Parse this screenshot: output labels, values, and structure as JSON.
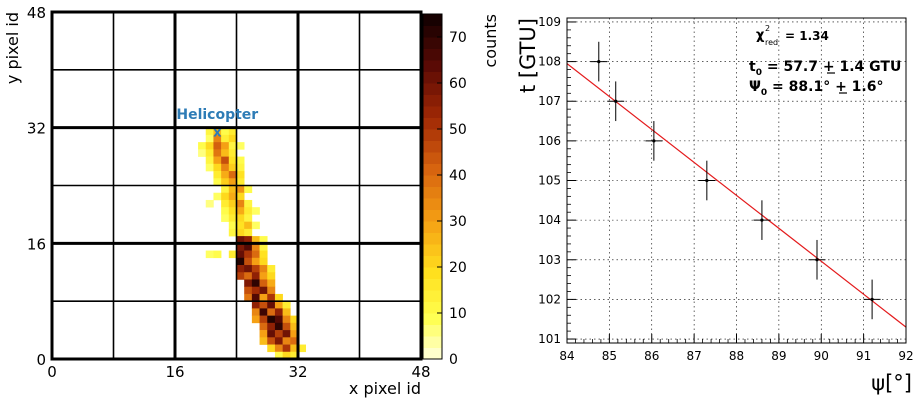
{
  "chart_data": [
    {
      "type": "heatmap",
      "xlabel": "x pixel id",
      "ylabel": "y pixel id",
      "xlim": [
        0,
        48
      ],
      "ylim": [
        0,
        48
      ],
      "x_ticks": [
        0,
        16,
        32,
        48
      ],
      "y_ticks": [
        0,
        16,
        32,
        48
      ],
      "grid": "thick lines every 8 pixels",
      "colorbar": {
        "label": "counts",
        "range": [
          0,
          75
        ],
        "ticks": [
          0,
          10,
          20,
          30,
          40,
          50,
          60,
          70
        ]
      },
      "annotation": {
        "text": "Helicopter",
        "marker": "x",
        "x": 21.5,
        "y": 31.5,
        "color": "#2e7cb6"
      },
      "cells": [
        [
          20,
          31,
          12
        ],
        [
          21,
          31,
          25
        ],
        [
          22,
          31,
          10
        ],
        [
          23,
          31,
          15
        ],
        [
          20,
          30,
          8
        ],
        [
          21,
          30,
          35
        ],
        [
          22,
          30,
          14
        ],
        [
          23,
          30,
          20
        ],
        [
          19,
          29,
          10
        ],
        [
          20,
          29,
          20
        ],
        [
          21,
          29,
          42
        ],
        [
          22,
          29,
          30
        ],
        [
          23,
          29,
          12
        ],
        [
          24,
          29,
          8
        ],
        [
          19,
          28,
          6
        ],
        [
          20,
          28,
          15
        ],
        [
          21,
          28,
          38
        ],
        [
          22,
          28,
          25
        ],
        [
          23,
          28,
          15
        ],
        [
          20,
          27,
          12
        ],
        [
          21,
          27,
          30
        ],
        [
          22,
          27,
          45
        ],
        [
          23,
          27,
          18
        ],
        [
          24,
          27,
          10
        ],
        [
          20,
          26,
          8
        ],
        [
          21,
          26,
          20
        ],
        [
          22,
          26,
          35
        ],
        [
          23,
          26,
          22
        ],
        [
          24,
          26,
          12
        ],
        [
          21,
          25,
          15
        ],
        [
          22,
          25,
          28
        ],
        [
          23,
          25,
          40
        ],
        [
          24,
          25,
          18
        ],
        [
          21,
          24,
          10
        ],
        [
          22,
          24,
          22
        ],
        [
          23,
          24,
          30
        ],
        [
          24,
          24,
          15
        ],
        [
          22,
          23,
          12
        ],
        [
          23,
          23,
          25
        ],
        [
          24,
          23,
          32
        ],
        [
          25,
          23,
          10
        ],
        [
          21,
          22,
          8
        ],
        [
          22,
          22,
          20
        ],
        [
          23,
          22,
          28
        ],
        [
          24,
          22,
          20
        ],
        [
          20,
          21,
          6
        ],
        [
          22,
          21,
          15
        ],
        [
          23,
          21,
          22
        ],
        [
          24,
          21,
          35
        ],
        [
          25,
          21,
          12
        ],
        [
          22,
          20,
          10
        ],
        [
          23,
          20,
          18
        ],
        [
          24,
          20,
          28
        ],
        [
          25,
          20,
          15
        ],
        [
          26,
          20,
          8
        ],
        [
          22,
          19,
          8
        ],
        [
          23,
          19,
          15
        ],
        [
          24,
          19,
          20
        ],
        [
          25,
          19,
          12
        ],
        [
          23,
          18,
          10
        ],
        [
          24,
          18,
          18
        ],
        [
          25,
          18,
          25
        ],
        [
          26,
          18,
          8
        ],
        [
          23,
          17,
          12
        ],
        [
          24,
          17,
          20
        ],
        [
          25,
          17,
          15
        ],
        [
          24,
          16,
          60
        ],
        [
          25,
          16,
          55
        ],
        [
          26,
          16,
          25
        ],
        [
          27,
          16,
          10
        ],
        [
          24,
          15,
          58
        ],
        [
          25,
          15,
          65
        ],
        [
          26,
          15,
          35
        ],
        [
          27,
          15,
          12
        ],
        [
          20,
          14,
          8
        ],
        [
          21,
          14,
          10
        ],
        [
          23,
          14,
          15
        ],
        [
          24,
          14,
          62
        ],
        [
          25,
          14,
          50
        ],
        [
          26,
          14,
          40
        ],
        [
          27,
          14,
          18
        ],
        [
          24,
          13,
          72
        ],
        [
          25,
          13,
          45
        ],
        [
          26,
          13,
          30
        ],
        [
          27,
          13,
          20
        ],
        [
          24,
          12,
          55
        ],
        [
          25,
          12,
          60
        ],
        [
          26,
          12,
          48
        ],
        [
          27,
          12,
          35
        ],
        [
          28,
          12,
          15
        ],
        [
          24,
          11,
          48
        ],
        [
          25,
          11,
          40
        ],
        [
          26,
          11,
          55
        ],
        [
          27,
          11,
          30
        ],
        [
          28,
          11,
          20
        ],
        [
          25,
          10,
          58
        ],
        [
          26,
          10,
          70
        ],
        [
          27,
          10,
          42
        ],
        [
          28,
          10,
          28
        ],
        [
          25,
          9,
          45
        ],
        [
          26,
          9,
          52
        ],
        [
          27,
          9,
          60
        ],
        [
          28,
          9,
          35
        ],
        [
          25,
          8,
          38
        ],
        [
          26,
          8,
          65
        ],
        [
          27,
          8,
          30
        ],
        [
          28,
          8,
          50
        ],
        [
          29,
          8,
          20
        ],
        [
          26,
          7,
          55
        ],
        [
          27,
          7,
          45
        ],
        [
          28,
          7,
          62
        ],
        [
          29,
          7,
          30
        ],
        [
          30,
          7,
          15
        ],
        [
          26,
          6,
          35
        ],
        [
          27,
          6,
          68
        ],
        [
          28,
          6,
          40
        ],
        [
          29,
          6,
          55
        ],
        [
          30,
          6,
          25
        ],
        [
          26,
          5,
          30
        ],
        [
          27,
          5,
          48
        ],
        [
          28,
          5,
          72
        ],
        [
          29,
          5,
          65
        ],
        [
          30,
          5,
          35
        ],
        [
          31,
          5,
          20
        ],
        [
          27,
          4,
          40
        ],
        [
          28,
          4,
          55
        ],
        [
          29,
          4,
          70
        ],
        [
          30,
          4,
          45
        ],
        [
          31,
          4,
          25
        ],
        [
          27,
          3,
          30
        ],
        [
          28,
          3,
          62
        ],
        [
          29,
          3,
          48
        ],
        [
          30,
          3,
          60
        ],
        [
          31,
          3,
          30
        ],
        [
          27,
          2,
          25
        ],
        [
          28,
          2,
          45
        ],
        [
          29,
          2,
          58
        ],
        [
          30,
          2,
          35
        ],
        [
          31,
          2,
          40
        ],
        [
          28,
          1,
          20
        ],
        [
          29,
          1,
          35
        ],
        [
          30,
          1,
          50
        ],
        [
          31,
          1,
          25
        ],
        [
          32,
          1,
          15
        ],
        [
          29,
          0,
          10
        ],
        [
          30,
          0,
          20
        ],
        [
          31,
          0,
          15
        ]
      ]
    },
    {
      "type": "scatter",
      "xlabel": "ψ[°]",
      "ylabel": "t [GTU]",
      "xlim": [
        84,
        92
      ],
      "ylim": [
        100.9,
        109.1
      ],
      "x_ticks": [
        84,
        85,
        86,
        87,
        88,
        89,
        90,
        91,
        92
      ],
      "y_ticks": [
        101,
        102,
        103,
        104,
        105,
        106,
        107,
        108,
        109
      ],
      "grid": true,
      "series": [
        {
          "x": [
            84.75,
            85.15,
            86.05,
            87.3,
            88.6,
            89.9,
            91.2
          ],
          "y": [
            108,
            107,
            106,
            105,
            104,
            103,
            102
          ],
          "x_err": [
            0.2,
            0.2,
            0.2,
            0.2,
            0.2,
            0.2,
            0.2
          ],
          "y_err": [
            0.5,
            0.5,
            0.5,
            0.5,
            0.5,
            0.5,
            0.5
          ]
        }
      ],
      "fit": {
        "x": [
          84,
          92
        ],
        "y": [
          107.95,
          101.3
        ],
        "color": "#e41a1c"
      },
      "annotations": {
        "chi2_symbol": "χ",
        "chi2_sup": "2",
        "chi2_sub": "red",
        "chi2_value": "= 1.34",
        "t0_symbol": "t",
        "t0_sub": "0",
        "t0_value": " = 57.7 + 1.4 GTU",
        "psi0_symbol": "Ψ",
        "psi0_sub": "0",
        "psi0_value": " = 88.1° + 1.6°"
      }
    }
  ]
}
